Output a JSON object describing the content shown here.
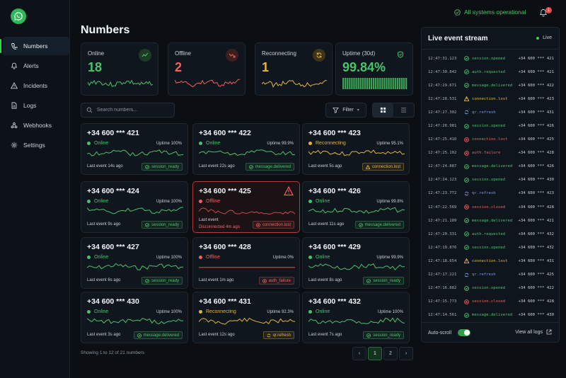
{
  "app": {
    "title": "Numbers"
  },
  "sidebar": {
    "items": [
      {
        "label": "Numbers",
        "icon": "phone-icon",
        "active": true
      },
      {
        "label": "Alerts",
        "icon": "bell-icon"
      },
      {
        "label": "Incidents",
        "icon": "warning-icon"
      },
      {
        "label": "Logs",
        "icon": "document-icon"
      },
      {
        "label": "Webhooks",
        "icon": "webhook-icon"
      },
      {
        "label": "Settings",
        "icon": "gear-icon"
      }
    ]
  },
  "topbar": {
    "status": "All systems operational",
    "notifications": "1"
  },
  "summary": [
    {
      "label": "Online",
      "value": "18",
      "color": "#4ac26b"
    },
    {
      "label": "Offline",
      "value": "2",
      "color": "#f0605d"
    },
    {
      "label": "Reconnecting",
      "value": "1",
      "color": "#e3b341"
    },
    {
      "label": "Uptime (30d)",
      "value": "99.84%",
      "color": "#4ac26b"
    }
  ],
  "toolbar": {
    "search_placeholder": "Search numbers...",
    "filter_label": "Filter"
  },
  "cards": [
    {
      "number": "+34 600 *** 421",
      "status": "Online",
      "uptime": "Uptime 100%",
      "last_event": "Last event  14s ago",
      "event": "session_ready",
      "kind": "ok"
    },
    {
      "number": "+34 600 *** 422",
      "status": "Online",
      "uptime": "Uptime 99.9%",
      "last_event": "Last event  22s ago",
      "event": "message.delivered",
      "kind": "ok"
    },
    {
      "number": "+34 600 *** 423",
      "status": "Reconnecting",
      "uptime": "Uptime 95.1%",
      "last_event": "Last event  5s ago",
      "event": "connection.lost",
      "kind": "warn"
    },
    {
      "number": "+34 600 *** 424",
      "status": "Online",
      "uptime": "Uptime 100%",
      "last_event": "Last event  9s ago",
      "event": "session_ready",
      "kind": "ok"
    },
    {
      "number": "+34 600 *** 425",
      "status": "Offline",
      "uptime": "",
      "last_event": "Last event",
      "disconnected": "Disconnected 4m ago",
      "event": "connection.lost",
      "kind": "err"
    },
    {
      "number": "+34 600 *** 426",
      "status": "Online",
      "uptime": "Uptime 99.8%",
      "last_event": "Last event  11s ago",
      "event": "message.delivered",
      "kind": "ok"
    },
    {
      "number": "+34 600 *** 427",
      "status": "Online",
      "uptime": "Uptime 100%",
      "last_event": "Last event  6s ago",
      "event": "session_ready",
      "kind": "ok"
    },
    {
      "number": "+34 600 *** 428",
      "status": "Offline",
      "uptime": "Uptime 0%",
      "last_event": "Last event  1m ago",
      "event": "auth_failure",
      "kind": "err"
    },
    {
      "number": "+34 600 *** 429",
      "status": "Online",
      "uptime": "Uptime 99.9%",
      "last_event": "Last event  8s ago",
      "event": "session_ready",
      "kind": "ok"
    },
    {
      "number": "+34 600 *** 430",
      "status": "Online",
      "uptime": "Uptime 100%",
      "last_event": "Last event  3s ago",
      "event": "message.delivered",
      "kind": "ok"
    },
    {
      "number": "+34 600 *** 431",
      "status": "Reconnecting",
      "uptime": "Uptime 92.3%",
      "last_event": "Last event  12s ago",
      "event": "qr.refresh",
      "kind": "warn"
    },
    {
      "number": "+34 600 *** 432",
      "status": "Online",
      "uptime": "Uptime 100%",
      "last_event": "Last event  7s ago",
      "event": "session_ready",
      "kind": "ok"
    }
  ],
  "pagination": {
    "showing": "Showing 1 to 12 of 21 numbers",
    "pages": [
      "1",
      "2"
    ],
    "prev": "‹",
    "next": "›"
  },
  "stream": {
    "title": "Live event stream",
    "live": "Live",
    "events": [
      {
        "time": "12:47:31.123",
        "name": "session.opened",
        "phone": "+34 600 *** 421",
        "kind": "ok"
      },
      {
        "time": "12:47:30.842",
        "name": "auth.requested",
        "phone": "+34 600 *** 421",
        "kind": "ok"
      },
      {
        "time": "12:47:29.671",
        "name": "message.delivered",
        "phone": "+34 600 *** 422",
        "kind": "ok"
      },
      {
        "time": "12:47:28.531",
        "name": "connection.lost",
        "phone": "+34 600 *** 423",
        "kind": "warn"
      },
      {
        "time": "12:47:27.302",
        "name": "qr.refresh",
        "phone": "+34 600 *** 431",
        "kind": "info"
      },
      {
        "time": "12:47:26.981",
        "name": "session.opened",
        "phone": "+34 600 *** 426",
        "kind": "ok"
      },
      {
        "time": "12:47:25.410",
        "name": "connection.lost",
        "phone": "+34 600 *** 425",
        "kind": "err"
      },
      {
        "time": "12:47:25.102",
        "name": "auth.failure",
        "phone": "+34 600 *** 428",
        "kind": "err"
      },
      {
        "time": "12:47:24.887",
        "name": "message.delivered",
        "phone": "+34 600 *** 426",
        "kind": "ok"
      },
      {
        "time": "12:47:24.123",
        "name": "session.opened",
        "phone": "+34 600 *** 430",
        "kind": "ok"
      },
      {
        "time": "12:47:23.772",
        "name": "qr.refresh",
        "phone": "+34 600 *** 423",
        "kind": "info"
      },
      {
        "time": "12:47:22.569",
        "name": "session.closed",
        "phone": "+34 600 *** 428",
        "kind": "err"
      },
      {
        "time": "12:47:21.189",
        "name": "message.delivered",
        "phone": "+34 600 *** 421",
        "kind": "ok"
      },
      {
        "time": "12:47:20.331",
        "name": "auth.requested",
        "phone": "+34 600 *** 432",
        "kind": "ok"
      },
      {
        "time": "12:47:19.876",
        "name": "session.opened",
        "phone": "+34 600 *** 432",
        "kind": "ok"
      },
      {
        "time": "12:47:18.654",
        "name": "connection.lost",
        "phone": "+34 600 *** 431",
        "kind": "warn"
      },
      {
        "time": "12:47:17.221",
        "name": "qr.refresh",
        "phone": "+34 600 *** 425",
        "kind": "info"
      },
      {
        "time": "12:47:16.882",
        "name": "session.opened",
        "phone": "+34 600 *** 422",
        "kind": "ok"
      },
      {
        "time": "12:47:15.773",
        "name": "session.closed",
        "phone": "+34 600 *** 428",
        "kind": "err"
      },
      {
        "time": "12:47:14.561",
        "name": "message.delivered",
        "phone": "+34 600 *** 430",
        "kind": "ok"
      }
    ],
    "autoscroll_label": "Auto-scroll",
    "view_all": "View all logs"
  },
  "colors": {
    "ok": "#4ac26b",
    "warn": "#e3b341",
    "err": "#f0605d",
    "info": "#6e9cf5"
  }
}
